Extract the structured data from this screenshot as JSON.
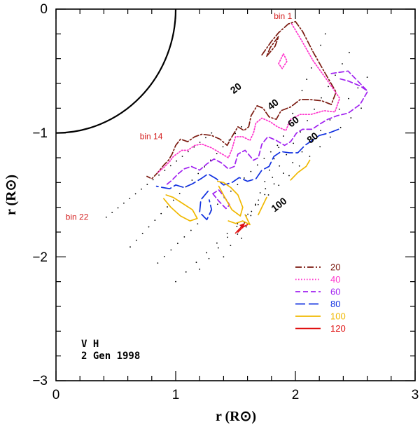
{
  "chart_data": {
    "type": "line",
    "title": "",
    "xlabel": "r (R⊙)",
    "ylabel": "r (R⊙)",
    "xlim": [
      0,
      3
    ],
    "ylim": [
      -3,
      0
    ],
    "x_ticks": [
      "0",
      "1",
      "2",
      "3"
    ],
    "y_ticks": [
      "0",
      "−1",
      "−2",
      "−3"
    ],
    "observation": {
      "line1": "V H",
      "line2": "2 Gen 1998"
    },
    "bin_labels": [
      {
        "text": "bin 1",
        "color": "#d42020",
        "x": 1.82,
        "y": -0.08
      },
      {
        "text": "bin 14",
        "color": "#d42020",
        "x": 0.7,
        "y": -1.05
      },
      {
        "text": "bin 22",
        "color": "#d42020",
        "x": 0.08,
        "y": -1.7
      }
    ],
    "contour_labels": [
      {
        "text": "20",
        "x": 1.52,
        "y": -0.66
      },
      {
        "text": "40",
        "x": 1.83,
        "y": -0.79
      },
      {
        "text": "60",
        "x": 2.0,
        "y": -0.93
      },
      {
        "text": "80",
        "x": 2.16,
        "y": -1.06
      },
      {
        "text": "100",
        "x": 1.88,
        "y": -1.6
      }
    ],
    "legend": [
      {
        "label": "20",
        "color": "#7b1a10",
        "dash": "dashdot"
      },
      {
        "label": "40",
        "color": "#ff33cc",
        "dash": "dotted"
      },
      {
        "label": "60",
        "color": "#a020f0",
        "dash": "dashed"
      },
      {
        "label": "80",
        "color": "#1030e0",
        "dash": "longdash"
      },
      {
        "label": "100",
        "color": "#f0b800",
        "dash": "solid"
      },
      {
        "label": "120",
        "color": "#e01010",
        "dash": "solid"
      }
    ],
    "solar_limb": {
      "radius": 1.0
    },
    "series": [
      {
        "name": "20",
        "color": "#7b1a10",
        "dash": "dashdot",
        "points": [
          [
            1.72,
            -0.37
          ],
          [
            1.8,
            -0.26
          ],
          [
            1.86,
            -0.19
          ],
          [
            1.94,
            -0.12
          ],
          [
            2.0,
            -0.1
          ],
          [
            2.06,
            -0.18
          ],
          [
            2.15,
            -0.35
          ],
          [
            2.25,
            -0.52
          ],
          [
            2.34,
            -0.67
          ],
          [
            2.3,
            -0.77
          ],
          [
            2.22,
            -0.74
          ],
          [
            2.12,
            -0.73
          ],
          [
            2.04,
            -0.73
          ],
          [
            1.96,
            -0.79
          ],
          [
            1.88,
            -0.82
          ],
          [
            1.84,
            -0.89
          ],
          [
            1.78,
            -0.87
          ],
          [
            1.73,
            -0.8
          ],
          [
            1.68,
            -0.78
          ],
          [
            1.63,
            -0.86
          ],
          [
            1.61,
            -0.95
          ],
          [
            1.57,
            -0.98
          ],
          [
            1.52,
            -0.95
          ],
          [
            1.47,
            -1.03
          ],
          [
            1.43,
            -1.1
          ],
          [
            1.37,
            -1.05
          ],
          [
            1.3,
            -1.02
          ],
          [
            1.22,
            -1.01
          ],
          [
            1.16,
            -1.03
          ],
          [
            1.1,
            -1.07
          ],
          [
            1.04,
            -1.05
          ],
          [
            1.0,
            -1.1
          ],
          [
            0.97,
            -1.17
          ],
          [
            0.94,
            -1.22
          ],
          [
            0.9,
            -1.26
          ],
          [
            0.85,
            -1.32
          ],
          [
            0.8,
            -1.37
          ],
          [
            0.76,
            -1.35
          ]
        ]
      },
      {
        "name": "20-loop",
        "color": "#7b1a10",
        "dash": "dashdot",
        "points": [
          [
            1.76,
            -0.38
          ],
          [
            1.83,
            -0.3
          ],
          [
            1.86,
            -0.22
          ],
          [
            1.79,
            -0.31
          ],
          [
            1.76,
            -0.38
          ]
        ]
      },
      {
        "name": "40",
        "color": "#ff33cc",
        "dash": "dotted",
        "points": [
          [
            1.97,
            -0.12
          ],
          [
            2.05,
            -0.25
          ],
          [
            2.15,
            -0.42
          ],
          [
            2.27,
            -0.58
          ],
          [
            2.37,
            -0.72
          ],
          [
            2.33,
            -0.83
          ],
          [
            2.24,
            -0.82
          ],
          [
            2.13,
            -0.85
          ],
          [
            2.04,
            -0.85
          ],
          [
            1.96,
            -0.89
          ],
          [
            1.92,
            -0.98
          ],
          [
            1.85,
            -0.95
          ],
          [
            1.79,
            -0.91
          ],
          [
            1.72,
            -0.88
          ],
          [
            1.67,
            -0.92
          ],
          [
            1.65,
            -1.0
          ],
          [
            1.62,
            -1.06
          ],
          [
            1.56,
            -1.03
          ],
          [
            1.5,
            -1.03
          ],
          [
            1.47,
            -1.13
          ],
          [
            1.44,
            -1.2
          ],
          [
            1.37,
            -1.16
          ],
          [
            1.3,
            -1.12
          ],
          [
            1.22,
            -1.09
          ],
          [
            1.16,
            -1.1
          ],
          [
            1.1,
            -1.14
          ],
          [
            1.05,
            -1.14
          ],
          [
            0.98,
            -1.19
          ],
          [
            0.95,
            -1.23
          ],
          [
            0.9,
            -1.28
          ],
          [
            0.85,
            -1.32
          ]
        ]
      },
      {
        "name": "40-loop",
        "color": "#ff33cc",
        "dash": "dotted",
        "points": [
          [
            1.86,
            -0.44
          ],
          [
            1.9,
            -0.36
          ],
          [
            1.93,
            -0.42
          ],
          [
            1.89,
            -0.48
          ],
          [
            1.86,
            -0.44
          ]
        ]
      },
      {
        "name": "60",
        "color": "#a020f0",
        "dash": "dashed",
        "points": [
          [
            2.6,
            -0.67
          ],
          [
            2.54,
            -0.77
          ],
          [
            2.44,
            -0.84
          ],
          [
            2.35,
            -0.86
          ],
          [
            2.27,
            -0.89
          ],
          [
            2.2,
            -0.93
          ],
          [
            2.14,
            -0.97
          ],
          [
            2.06,
            -0.97
          ],
          [
            2.01,
            -1.0
          ],
          [
            1.96,
            -1.07
          ],
          [
            1.91,
            -1.1
          ],
          [
            1.84,
            -1.06
          ],
          [
            1.77,
            -1.03
          ],
          [
            1.72,
            -1.09
          ],
          [
            1.69,
            -1.2
          ],
          [
            1.65,
            -1.22
          ],
          [
            1.58,
            -1.14
          ],
          [
            1.52,
            -1.17
          ],
          [
            1.49,
            -1.27
          ],
          [
            1.44,
            -1.29
          ],
          [
            1.38,
            -1.24
          ],
          [
            1.32,
            -1.21
          ],
          [
            1.26,
            -1.25
          ],
          [
            1.2,
            -1.3
          ],
          [
            1.13,
            -1.27
          ],
          [
            1.07,
            -1.29
          ],
          [
            1.02,
            -1.33
          ],
          [
            0.97,
            -1.38
          ],
          [
            0.92,
            -1.42
          ]
        ]
      },
      {
        "name": "60-loop",
        "color": "#a020f0",
        "dash": "dashed",
        "points": [
          [
            2.3,
            -0.52
          ],
          [
            2.44,
            -0.5
          ],
          [
            2.52,
            -0.58
          ],
          [
            2.6,
            -0.66
          ],
          [
            2.54,
            -0.62
          ],
          [
            2.44,
            -0.58
          ],
          [
            2.36,
            -0.56
          ]
        ]
      },
      {
        "name": "60-inner",
        "color": "#a020f0",
        "dash": "dashed",
        "points": [
          [
            1.31,
            -1.49
          ],
          [
            1.36,
            -1.55
          ],
          [
            1.42,
            -1.61
          ],
          [
            1.45,
            -1.58
          ],
          [
            1.41,
            -1.52
          ],
          [
            1.36,
            -1.46
          ],
          [
            1.31,
            -1.49
          ]
        ]
      },
      {
        "name": "80",
        "color": "#1030e0",
        "dash": "longdash",
        "points": [
          [
            2.36,
            -0.97
          ],
          [
            2.28,
            -1.0
          ],
          [
            2.2,
            -1.02
          ],
          [
            2.14,
            -1.06
          ],
          [
            2.08,
            -1.1
          ],
          [
            2.02,
            -1.16
          ],
          [
            1.95,
            -1.16
          ],
          [
            1.88,
            -1.15
          ],
          [
            1.82,
            -1.19
          ],
          [
            1.78,
            -1.27
          ],
          [
            1.72,
            -1.3
          ],
          [
            1.67,
            -1.37
          ],
          [
            1.6,
            -1.39
          ],
          [
            1.53,
            -1.36
          ],
          [
            1.47,
            -1.4
          ],
          [
            1.4,
            -1.42
          ],
          [
            1.34,
            -1.37
          ],
          [
            1.27,
            -1.33
          ],
          [
            1.21,
            -1.37
          ],
          [
            1.14,
            -1.41
          ],
          [
            1.07,
            -1.44
          ],
          [
            1.0,
            -1.42
          ],
          [
            0.95,
            -1.45
          ],
          [
            0.89,
            -1.44
          ],
          [
            0.84,
            -1.43
          ]
        ]
      },
      {
        "name": "80-loop",
        "color": "#1030e0",
        "dash": "longdash",
        "points": [
          [
            1.27,
            -1.47
          ],
          [
            1.21,
            -1.54
          ],
          [
            1.2,
            -1.64
          ],
          [
            1.26,
            -1.7
          ],
          [
            1.3,
            -1.62
          ],
          [
            1.28,
            -1.54
          ]
        ]
      },
      {
        "name": "100",
        "color": "#f0b800",
        "dash": "solid",
        "points": [
          [
            0.9,
            -1.53
          ],
          [
            0.96,
            -1.6
          ],
          [
            1.04,
            -1.67
          ],
          [
            1.12,
            -1.71
          ],
          [
            1.18,
            -1.69
          ],
          [
            1.14,
            -1.62
          ],
          [
            1.06,
            -1.57
          ],
          [
            0.98,
            -1.52
          ],
          [
            0.92,
            -1.5
          ]
        ]
      },
      {
        "name": "100-b",
        "color": "#f0b800",
        "dash": "solid",
        "points": [
          [
            1.36,
            -1.43
          ],
          [
            1.41,
            -1.52
          ],
          [
            1.47,
            -1.62
          ],
          [
            1.54,
            -1.67
          ],
          [
            1.56,
            -1.6
          ],
          [
            1.52,
            -1.5
          ],
          [
            1.46,
            -1.44
          ],
          [
            1.4,
            -1.4
          ],
          [
            1.35,
            -1.39
          ]
        ]
      },
      {
        "name": "100-c",
        "color": "#f0b800",
        "dash": "solid",
        "points": [
          [
            1.44,
            -1.71
          ],
          [
            1.5,
            -1.73
          ],
          [
            1.56,
            -1.71
          ],
          [
            1.62,
            -1.74
          ],
          [
            1.58,
            -1.66
          ]
        ]
      },
      {
        "name": "100-d",
        "color": "#f0b800",
        "dash": "solid",
        "points": [
          [
            1.76,
            -1.52
          ],
          [
            1.72,
            -1.6
          ],
          [
            1.69,
            -1.66
          ]
        ]
      },
      {
        "name": "100-e",
        "color": "#f0b800",
        "dash": "solid",
        "points": [
          [
            1.96,
            -1.38
          ],
          [
            2.02,
            -1.32
          ],
          [
            2.09,
            -1.27
          ],
          [
            2.12,
            -1.22
          ]
        ]
      },
      {
        "name": "120",
        "color": "#e01010",
        "dash": "solid",
        "points": [
          [
            1.52,
            -1.8
          ],
          [
            1.56,
            -1.76
          ],
          [
            1.6,
            -1.74
          ]
        ]
      }
    ]
  }
}
